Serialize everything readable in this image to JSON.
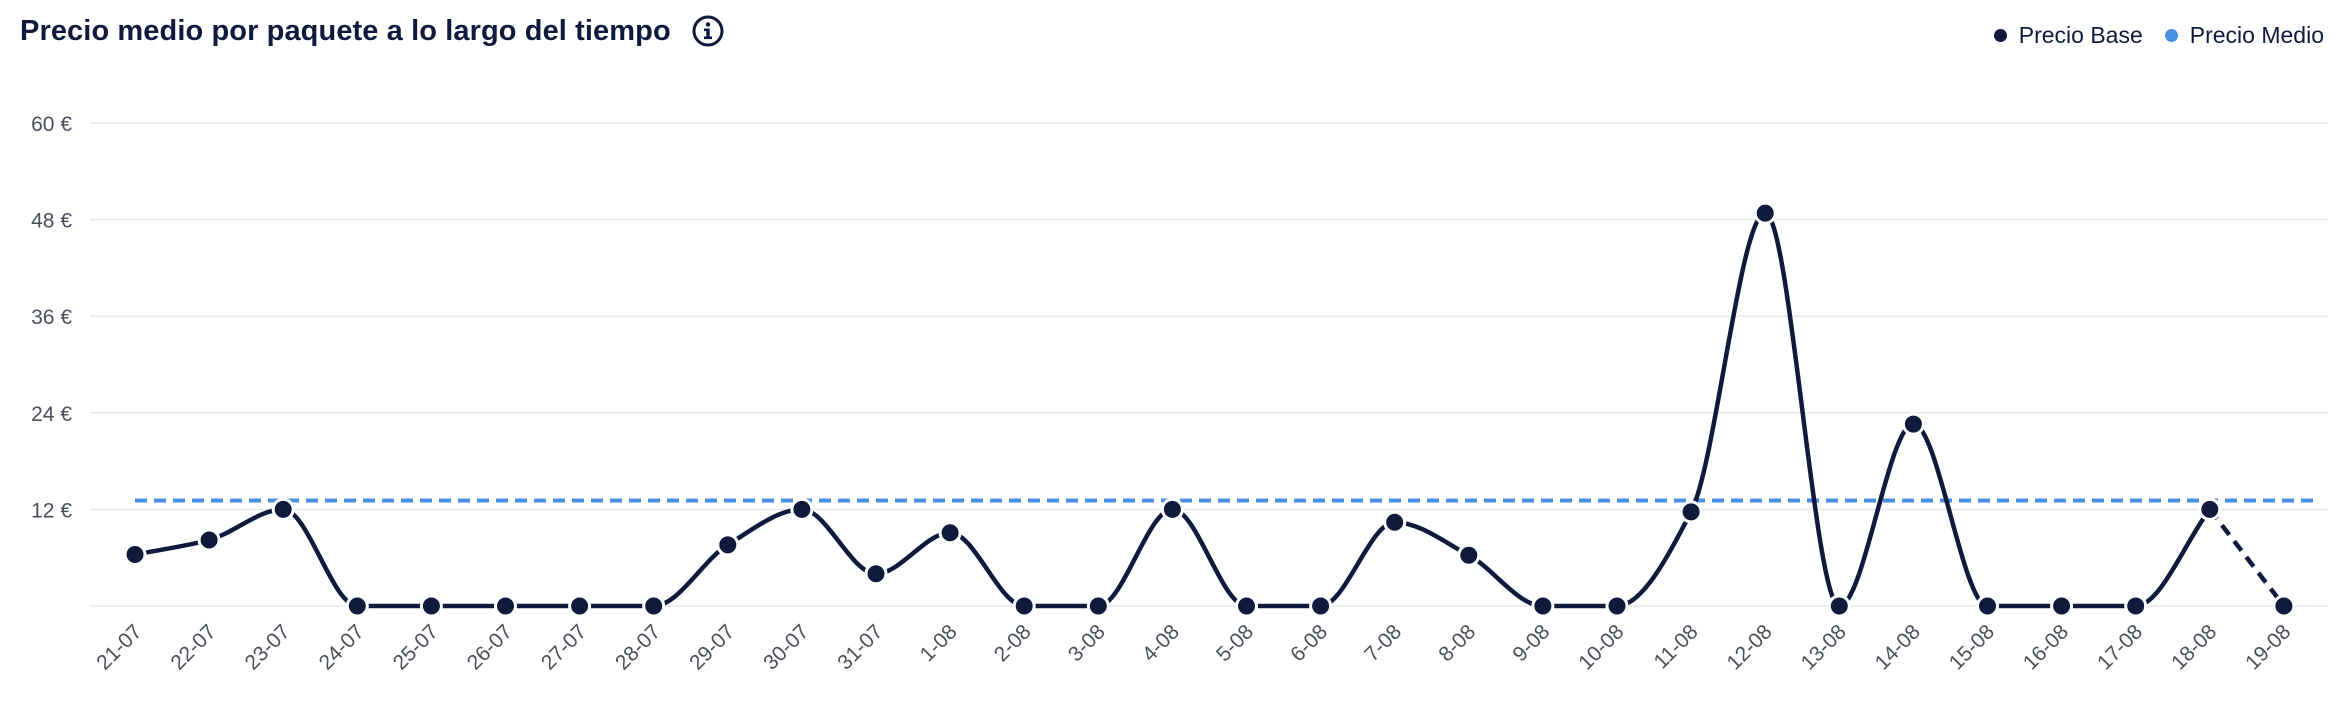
{
  "header": {
    "title": "Precio medio por paquete a lo largo del tiempo",
    "info_icon": "info-icon"
  },
  "legend": {
    "items": [
      {
        "label": "Precio Base",
        "color": "#0f1a3d"
      },
      {
        "label": "Precio Medio",
        "color": "#4a90e2"
      }
    ]
  },
  "chart_data": {
    "type": "line",
    "categories": [
      "21-07",
      "22-07",
      "23-07",
      "24-07",
      "25-07",
      "26-07",
      "27-07",
      "28-07",
      "29-07",
      "30-07",
      "31-07",
      "1-08",
      "2-08",
      "3-08",
      "4-08",
      "5-08",
      "6-08",
      "7-08",
      "8-08",
      "9-08",
      "10-08",
      "11-08",
      "12-08",
      "13-08",
      "14-08",
      "15-08",
      "16-08",
      "17-08",
      "18-08",
      "19-08"
    ],
    "series": [
      {
        "name": "Precio Base",
        "color": "#0f1a3d",
        "values": [
          6.4,
          8.2,
          12,
          0,
          0,
          0,
          0,
          0,
          7.6,
          12,
          4,
          9.1,
          0,
          0,
          12,
          0,
          0,
          10.4,
          6.3,
          0,
          0,
          11.7,
          48.8,
          0,
          22.6,
          0,
          0,
          0,
          12,
          0
        ],
        "dashed_last_segment": true
      },
      {
        "name": "Precio Medio",
        "color": "#4a90e2",
        "values": [
          13.1,
          13.1,
          13.1,
          13.1,
          13.1,
          13.1,
          13.1,
          13.1,
          13.1,
          13.1,
          13.1,
          13.1,
          13.1,
          13.1,
          13.1,
          13.1,
          13.1,
          13.1,
          13.1,
          13.1,
          13.1,
          13.1,
          13.1,
          13.1,
          13.1,
          13.1,
          13.1,
          13.1,
          13.1,
          13.1
        ],
        "style": "dashed"
      }
    ],
    "y_ticks": [
      "60 €",
      "48 €",
      "36 €",
      "24 €",
      "12 €"
    ],
    "y_tick_values": [
      60,
      48,
      36,
      24,
      12
    ],
    "ylim": [
      0,
      60
    ],
    "grid": true,
    "legend_position": "top-right"
  }
}
